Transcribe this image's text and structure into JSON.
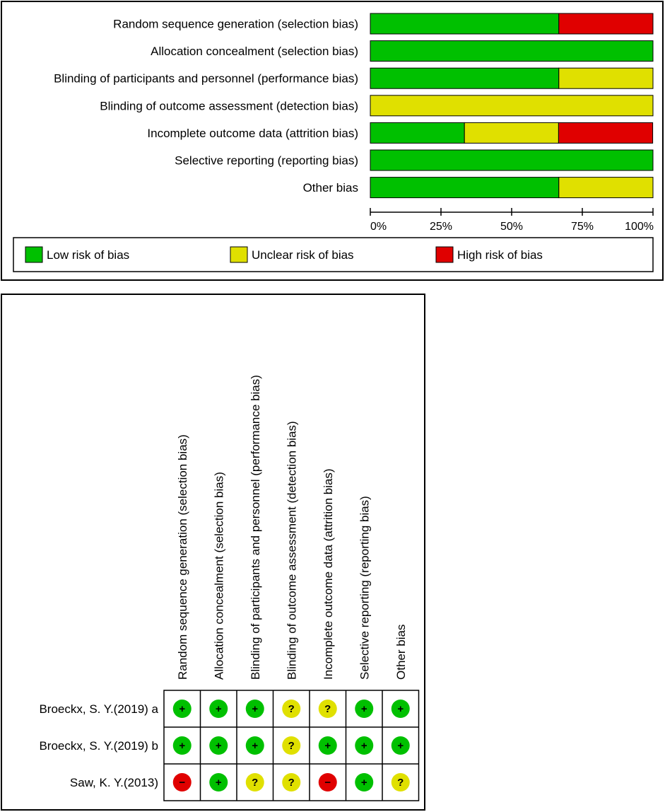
{
  "colors": {
    "low": "#00c000",
    "unclear": "#e0e000",
    "high": "#e00000"
  },
  "chart_data": [
    {
      "type": "bar",
      "orientation": "horizontal",
      "stacked": true,
      "categories": [
        "Random sequence generation (selection bias)",
        "Allocation concealment (selection bias)",
        "Blinding of participants and personnel (performance bias)",
        "Blinding of outcome assessment (detection bias)",
        "Incomplete outcome data (attrition bias)",
        "Selective reporting (reporting bias)",
        "Other bias"
      ],
      "series": [
        {
          "name": "Low risk of bias",
          "color": "#00c000",
          "values": [
            66.7,
            100,
            66.7,
            0,
            33.3,
            100,
            66.7
          ]
        },
        {
          "name": "Unclear risk of bias",
          "color": "#e0e000",
          "values": [
            0,
            0,
            33.3,
            100,
            33.3,
            0,
            33.3
          ]
        },
        {
          "name": "High risk of bias",
          "color": "#e00000",
          "values": [
            33.3,
            0,
            0,
            0,
            33.3,
            0,
            0
          ]
        }
      ],
      "xlim": [
        0,
        100
      ],
      "xticks": [
        0,
        25,
        50,
        75,
        100
      ],
      "xtick_labels": [
        "0%",
        "25%",
        "50%",
        "75%",
        "100%"
      ],
      "legend": {
        "position": "bottom",
        "entries": [
          "Low risk of bias",
          "Unclear risk of bias",
          "High risk of bias"
        ]
      },
      "grid": false
    },
    {
      "type": "table",
      "columns": [
        "Random sequence generation (selection bias)",
        "Allocation concealment (selection bias)",
        "Blinding of participants and personnel (performance bias)",
        "Blinding of outcome assessment (detection bias)",
        "Incomplete outcome data (attrition bias)",
        "Selective reporting (reporting bias)",
        "Other bias"
      ],
      "rows": [
        {
          "study": "Broeckx, S. Y.(2019) a",
          "ratings": [
            "low",
            "low",
            "low",
            "unclear",
            "unclear",
            "low",
            "low"
          ]
        },
        {
          "study": "Broeckx, S. Y.(2019) b",
          "ratings": [
            "low",
            "low",
            "low",
            "unclear",
            "low",
            "low",
            "low"
          ]
        },
        {
          "study": "Saw, K. Y.(2013)",
          "ratings": [
            "high",
            "low",
            "unclear",
            "unclear",
            "high",
            "low",
            "unclear"
          ]
        }
      ],
      "symbols": {
        "low": "+",
        "unclear": "?",
        "high": "−"
      }
    }
  ]
}
